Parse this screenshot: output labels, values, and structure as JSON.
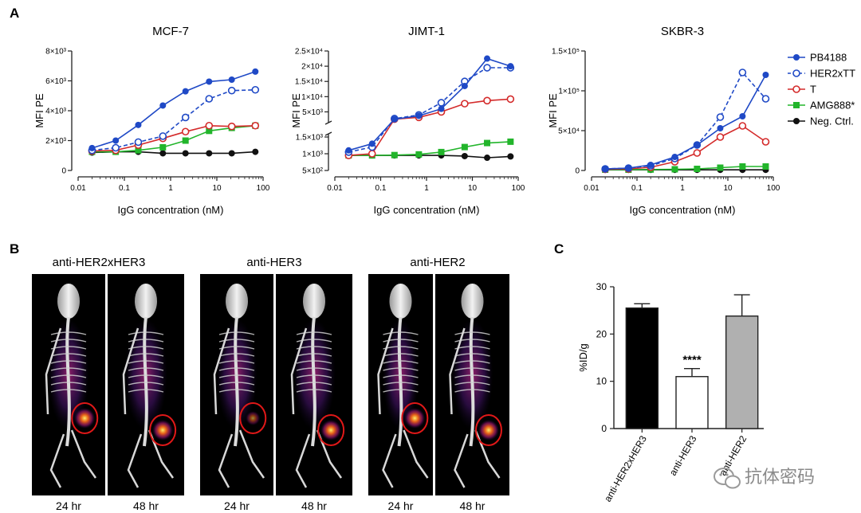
{
  "panels": {
    "A": "A",
    "B": "B",
    "C": "C"
  },
  "colors": {
    "PB4188": "#1f49c6",
    "HER2xTT": "#1f49c6",
    "T": "#d42a2a",
    "AMG888": "#22b52b",
    "Neg": "#111111",
    "bar_black": "#000000",
    "bar_white": "#ffffff",
    "bar_gray": "#b0b0b0"
  },
  "legend": [
    {
      "key": "PB4188",
      "label": "PB4188",
      "marker": "filled-circle",
      "dash": false
    },
    {
      "key": "HER2xTT",
      "label": "HER2xTT",
      "marker": "open-circle",
      "dash": true
    },
    {
      "key": "T",
      "label": "T",
      "marker": "open-circle",
      "dash": false
    },
    {
      "key": "AMG888",
      "label": "AMG888*",
      "marker": "filled-square",
      "dash": false
    },
    {
      "key": "Neg",
      "label": "Neg. Ctrl.",
      "marker": "filled-circle",
      "dash": false
    }
  ],
  "chart_data": [
    {
      "type": "line",
      "title": "MCF-7",
      "xlabel": "IgG concentration (nM)",
      "ylabel": "MFI PE",
      "xscale": "log",
      "xlim": [
        0.01,
        100
      ],
      "ylim": [
        0,
        8000
      ],
      "xticks": [
        {
          "v": 0.01,
          "label": "0.01"
        },
        {
          "v": 0.1,
          "label": "0.1"
        },
        {
          "v": 1,
          "label": "1"
        },
        {
          "v": 10,
          "label": "10"
        },
        {
          "v": 100,
          "label": "100"
        }
      ],
      "yticks": [
        {
          "v": 0,
          "label": "0"
        },
        {
          "v": 2000,
          "label": "2×10³"
        },
        {
          "v": 4000,
          "label": "4×10³"
        },
        {
          "v": 6000,
          "label": "6×10³"
        },
        {
          "v": 8000,
          "label": "8×10³"
        }
      ],
      "x": [
        0.02,
        0.065,
        0.2,
        0.68,
        2.1,
        6.8,
        21,
        68
      ],
      "series": [
        {
          "key": "PB4188",
          "values": [
            1500,
            2000,
            3050,
            4350,
            5300,
            5950,
            6080,
            6620
          ]
        },
        {
          "key": "HER2xTT",
          "values": [
            1350,
            1520,
            1900,
            2300,
            3550,
            4800,
            5350,
            5400
          ]
        },
        {
          "key": "T",
          "values": [
            1300,
            1350,
            1700,
            2150,
            2600,
            3000,
            2950,
            3000
          ]
        },
        {
          "key": "AMG888",
          "values": [
            1250,
            1250,
            1350,
            1550,
            2000,
            2650,
            2850,
            3000
          ]
        },
        {
          "key": "Neg",
          "values": [
            1200,
            1250,
            1250,
            1150,
            1150,
            1150,
            1150,
            1250
          ]
        }
      ]
    },
    {
      "type": "line",
      "title": "JIMT-1",
      "xlabel": "IgG concentration (nM)",
      "ylabel": "MFI PE",
      "xscale": "log",
      "xlim": [
        0.01,
        100
      ],
      "broken_axis": true,
      "ylim_lower": [
        500,
        1500
      ],
      "ylim_upper": [
        2500,
        25000
      ],
      "yticks_lower": [
        {
          "v": 500,
          "label": "5×10²"
        },
        {
          "v": 1000,
          "label": "1×10³"
        },
        {
          "v": 1500,
          "label": "1.5×10³"
        }
      ],
      "yticks_upper": [
        {
          "v": 5000,
          "label": "5×10³"
        },
        {
          "v": 10000,
          "label": "1×10⁴"
        },
        {
          "v": 15000,
          "label": "1.5×10⁴"
        },
        {
          "v": 20000,
          "label": "2×10⁴"
        },
        {
          "v": 25000,
          "label": "2.5×10⁴"
        }
      ],
      "xticks": [
        {
          "v": 0.01,
          "label": "0.01"
        },
        {
          "v": 0.1,
          "label": "0.1"
        },
        {
          "v": 1,
          "label": "1"
        },
        {
          "v": 10,
          "label": "10"
        },
        {
          "v": 100,
          "label": "100"
        }
      ],
      "x": [
        0.02,
        0.065,
        0.2,
        0.68,
        2.1,
        6.8,
        21,
        68
      ],
      "series": [
        {
          "key": "PB4188",
          "values": [
            1100,
            1300,
            2600,
            3700,
            6000,
            13500,
            22500,
            20000
          ]
        },
        {
          "key": "HER2xTT",
          "values": [
            1050,
            1200,
            2800,
            4000,
            8000,
            15000,
            19500,
            19500
          ]
        },
        {
          "key": "T",
          "values": [
            950,
            1000,
            2600,
            3200,
            5000,
            7700,
            8700,
            9200
          ]
        },
        {
          "key": "AMG888",
          "values": [
            950,
            950,
            960,
            980,
            1050,
            1200,
            1320,
            1360
          ]
        },
        {
          "key": "Neg",
          "values": [
            950,
            950,
            950,
            950,
            950,
            930,
            880,
            920
          ]
        }
      ]
    },
    {
      "type": "line",
      "title": "SKBR-3",
      "xlabel": "IgG concentration (nM)",
      "ylabel": "MFI PE",
      "xscale": "log",
      "xlim": [
        0.01,
        100
      ],
      "ylim": [
        0,
        150000
      ],
      "xticks": [
        {
          "v": 0.01,
          "label": "0.01"
        },
        {
          "v": 0.1,
          "label": "0.1"
        },
        {
          "v": 1,
          "label": "1"
        },
        {
          "v": 10,
          "label": "10"
        },
        {
          "v": 100,
          "label": "100"
        }
      ],
      "yticks": [
        {
          "v": 0,
          "label": "0"
        },
        {
          "v": 50000,
          "label": "5×10⁴"
        },
        {
          "v": 100000,
          "label": "1×10⁵"
        },
        {
          "v": 150000,
          "label": "1.5×10⁵"
        }
      ],
      "x": [
        0.02,
        0.065,
        0.2,
        0.68,
        2.1,
        6.8,
        21,
        68
      ],
      "series": [
        {
          "key": "PB4188",
          "values": [
            2000,
            3000,
            7000,
            17000,
            32000,
            53000,
            68000,
            120000
          ]
        },
        {
          "key": "HER2xTT",
          "values": [
            2000,
            3000,
            6000,
            15000,
            32000,
            67000,
            123000,
            90000
          ]
        },
        {
          "key": "T",
          "values": [
            1500,
            2000,
            4000,
            11000,
            22000,
            42000,
            56000,
            36000
          ]
        },
        {
          "key": "AMG888",
          "values": [
            1000,
            1000,
            1200,
            1500,
            2000,
            3500,
            5000,
            5000
          ]
        },
        {
          "key": "Neg",
          "values": [
            800,
            800,
            800,
            800,
            800,
            800,
            800,
            800
          ]
        }
      ]
    },
    {
      "type": "bar",
      "ylabel": "%ID/g",
      "ylim": [
        0,
        30
      ],
      "yticks": [
        {
          "v": 0,
          "label": "0"
        },
        {
          "v": 10,
          "label": "10"
        },
        {
          "v": 20,
          "label": "20"
        },
        {
          "v": 30,
          "label": "30"
        }
      ],
      "categories": [
        "anti-HER2xHER3",
        "anti-HER3",
        "anti-HER2"
      ],
      "values": [
        25.5,
        11.0,
        23.8
      ],
      "errors": [
        0.9,
        1.7,
        4.5
      ],
      "fills": [
        "bar_black",
        "bar_white",
        "bar_gray"
      ],
      "annotation": {
        "category": "anti-HER3",
        "text": "****"
      }
    }
  ],
  "imaging": {
    "groups": [
      {
        "title": "anti-HER2xHER3",
        "labels": [
          "24 hr",
          "48 hr"
        ]
      },
      {
        "title": "anti-HER3",
        "labels": [
          "24 hr",
          "48 hr"
        ]
      },
      {
        "title": "anti-HER2",
        "labels": [
          "24 hr",
          "48 hr"
        ]
      }
    ]
  },
  "watermark": {
    "text": "抗体密码"
  }
}
